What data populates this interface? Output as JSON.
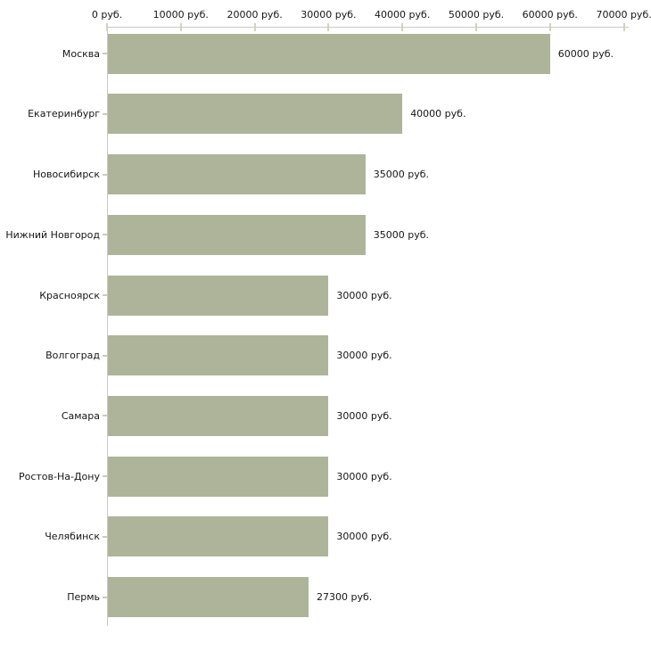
{
  "chart_data": {
    "type": "bar",
    "orientation": "horizontal",
    "categories": [
      "Москва",
      "Екатеринбург",
      "Новосибирск",
      "Нижний Новгород",
      "Красноярск",
      "Волгоград",
      "Самара",
      "Ростов-На-Дону",
      "Челябинск",
      "Пермь"
    ],
    "values": [
      60000,
      40000,
      35000,
      35000,
      30000,
      30000,
      30000,
      30000,
      30000,
      27300
    ],
    "value_labels": [
      "60000 руб.",
      "40000 руб.",
      "35000 руб.",
      "35000 руб.",
      "30000 руб.",
      "30000 руб.",
      "30000 руб.",
      "30000 руб.",
      "30000 руб.",
      "27300 руб."
    ],
    "x_axis": {
      "unit": "руб.",
      "min": 0,
      "max": 70000,
      "tick_step": 10000,
      "tick_labels": [
        "0 руб.",
        "10000 руб.",
        "20000 руб.",
        "30000 руб.",
        "40000 руб.",
        "50000 руб.",
        "60000 руб.",
        "70000 руб."
      ]
    },
    "legend": "none",
    "grid": "off",
    "colors": {
      "bar": "#aeb49a",
      "axis": "#c9c9c9",
      "x_tick": "#d0d4b8",
      "y_tick": "#c9ccb8",
      "text": "#161616",
      "background": "#ffffff"
    }
  }
}
